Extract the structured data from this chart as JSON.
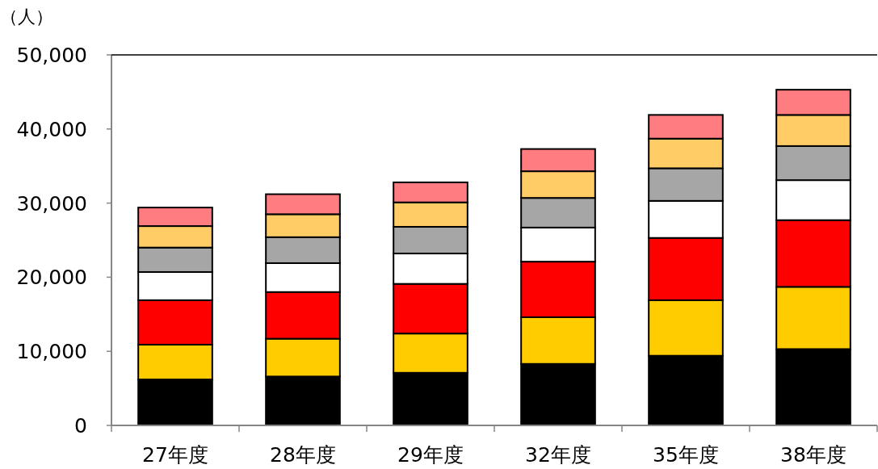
{
  "chart_data": {
    "type": "bar",
    "stacked": true,
    "ylabel": "（人）",
    "categories": [
      "27年度",
      "28年度",
      "29年度",
      "32年度",
      "35年度",
      "38年度"
    ],
    "series": [
      {
        "color": "#000000",
        "values": [
          6200,
          6600,
          7100,
          8300,
          9400,
          10300
        ]
      },
      {
        "color": "#ffcc00",
        "values": [
          4700,
          5100,
          5300,
          6300,
          7500,
          8400
        ]
      },
      {
        "color": "#ff0000",
        "values": [
          6000,
          6300,
          6700,
          7500,
          8400,
          9000
        ]
      },
      {
        "color": "#ffffff",
        "values": [
          3800,
          3900,
          4100,
          4600,
          5000,
          5400
        ]
      },
      {
        "color": "#a6a6a6",
        "values": [
          3300,
          3500,
          3600,
          4000,
          4400,
          4600
        ]
      },
      {
        "color": "#ffcc66",
        "values": [
          2900,
          3100,
          3300,
          3600,
          4000,
          4200
        ]
      },
      {
        "color": "#ff7c80",
        "values": [
          2500,
          2700,
          2700,
          3000,
          3200,
          3400
        ]
      }
    ],
    "ylim": [
      0,
      50000
    ],
    "yticks": [
      0,
      {
        "value": 10000,
        "label": "10,000"
      },
      {
        "value": 20000,
        "label": "20,000"
      },
      {
        "value": 30000,
        "label": "30,000"
      },
      {
        "value": 40000,
        "label": "40,000"
      },
      {
        "value": 50000,
        "label": "50,000"
      }
    ]
  }
}
